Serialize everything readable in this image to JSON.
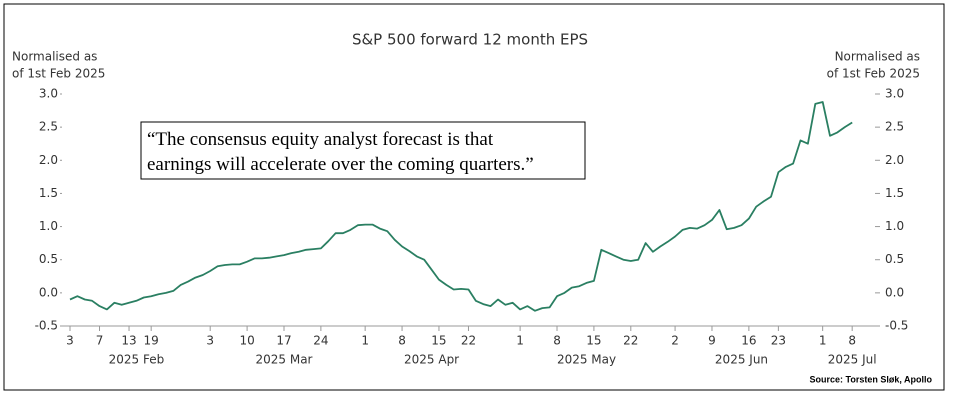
{
  "chart_data": {
    "type": "line",
    "title": "S&P 500 forward 12 month EPS",
    "y_label": [
      "Normalised as",
      "of 1st Feb 2025"
    ],
    "y2_label": [
      "Normalised as",
      "of 1st Feb 2025"
    ],
    "annotation": [
      "“The consensus equity analyst forecast is that",
      "earnings will accelerate over the coming quarters.”"
    ],
    "source": "Source: Torsten Sløk, Apollo",
    "x": [
      "2025-02-03",
      "2025-02-04",
      "2025-02-05",
      "2025-02-06",
      "2025-02-07",
      "2025-02-10",
      "2025-02-11",
      "2025-02-12",
      "2025-02-13",
      "2025-02-14",
      "2025-02-18",
      "2025-02-19",
      "2025-02-20",
      "2025-02-21",
      "2025-02-24",
      "2025-02-25",
      "2025-02-26",
      "2025-02-27",
      "2025-02-28",
      "2025-03-03",
      "2025-03-04",
      "2025-03-05",
      "2025-03-06",
      "2025-03-07",
      "2025-03-10",
      "2025-03-11",
      "2025-03-12",
      "2025-03-13",
      "2025-03-14",
      "2025-03-17",
      "2025-03-18",
      "2025-03-19",
      "2025-03-20",
      "2025-03-21",
      "2025-03-24",
      "2025-03-25",
      "2025-03-26",
      "2025-03-27",
      "2025-03-28",
      "2025-03-31",
      "2025-04-01",
      "2025-04-02",
      "2025-04-03",
      "2025-04-04",
      "2025-04-07",
      "2025-04-08",
      "2025-04-09",
      "2025-04-10",
      "2025-04-11",
      "2025-04-14",
      "2025-04-15",
      "2025-04-16",
      "2025-04-17",
      "2025-04-21",
      "2025-04-22",
      "2025-04-23",
      "2025-04-24",
      "2025-04-25",
      "2025-04-28",
      "2025-04-29",
      "2025-04-30",
      "2025-05-01",
      "2025-05-02",
      "2025-05-05",
      "2025-05-06",
      "2025-05-07",
      "2025-05-08",
      "2025-05-09",
      "2025-05-12",
      "2025-05-13",
      "2025-05-14",
      "2025-05-15",
      "2025-05-16",
      "2025-05-19",
      "2025-05-20",
      "2025-05-21",
      "2025-05-22",
      "2025-05-23",
      "2025-05-27",
      "2025-05-28",
      "2025-05-29",
      "2025-05-30",
      "2025-06-02",
      "2025-06-03",
      "2025-06-04",
      "2025-06-05",
      "2025-06-06",
      "2025-06-09",
      "2025-06-10",
      "2025-06-11",
      "2025-06-12",
      "2025-06-13",
      "2025-06-16",
      "2025-06-17",
      "2025-06-18",
      "2025-06-20",
      "2025-06-23",
      "2025-06-24",
      "2025-06-25",
      "2025-06-26",
      "2025-06-27",
      "2025-06-30",
      "2025-07-01",
      "2025-07-02",
      "2025-07-03",
      "2025-07-07",
      "2025-07-08"
    ],
    "series": [
      {
        "name": "S&P 500 forward 12 month EPS",
        "color": "#2a7f62",
        "values": [
          -0.1,
          -0.05,
          -0.1,
          -0.12,
          -0.2,
          -0.25,
          -0.15,
          -0.18,
          -0.15,
          -0.12,
          -0.07,
          -0.05,
          -0.02,
          0.0,
          0.03,
          0.12,
          0.17,
          0.23,
          0.27,
          0.33,
          0.4,
          0.42,
          0.43,
          0.43,
          0.47,
          0.52,
          0.52,
          0.53,
          0.55,
          0.57,
          0.6,
          0.62,
          0.65,
          0.66,
          0.67,
          0.78,
          0.9,
          0.9,
          0.95,
          1.02,
          1.03,
          1.03,
          0.97,
          0.93,
          0.8,
          0.7,
          0.63,
          0.55,
          0.5,
          0.35,
          0.2,
          0.12,
          0.05,
          0.06,
          0.05,
          -0.12,
          -0.17,
          -0.2,
          -0.1,
          -0.18,
          -0.15,
          -0.25,
          -0.2,
          -0.27,
          -0.23,
          -0.22,
          -0.05,
          0.0,
          0.08,
          0.1,
          0.15,
          0.18,
          0.65,
          0.6,
          0.55,
          0.5,
          0.48,
          0.5,
          0.75,
          0.62,
          0.7,
          0.77,
          0.85,
          0.95,
          0.98,
          0.97,
          1.02,
          1.1,
          1.25,
          0.96,
          0.98,
          1.02,
          1.12,
          1.3,
          1.38,
          1.45,
          1.82,
          1.9,
          1.95,
          2.3,
          2.25,
          2.85,
          2.88,
          2.37,
          2.42,
          2.5,
          2.57
        ]
      }
    ],
    "xticks": [
      {
        "value": "2025-02-03",
        "label": "3"
      },
      {
        "value": "2025-02-07",
        "label": "7"
      },
      {
        "value": "2025-02-13",
        "label": "13"
      },
      {
        "value": "2025-02-19",
        "label": "19"
      },
      {
        "value": "2025-03-03",
        "label": "3"
      },
      {
        "value": "2025-03-10",
        "label": "10"
      },
      {
        "value": "2025-03-17",
        "label": "17"
      },
      {
        "value": "2025-03-24",
        "label": "24"
      },
      {
        "value": "2025-04-01",
        "label": "1"
      },
      {
        "value": "2025-04-08",
        "label": "8"
      },
      {
        "value": "2025-04-15",
        "label": "15"
      },
      {
        "value": "2025-04-22",
        "label": "22"
      },
      {
        "value": "2025-05-01",
        "label": "1"
      },
      {
        "value": "2025-05-08",
        "label": "8"
      },
      {
        "value": "2025-05-15",
        "label": "15"
      },
      {
        "value": "2025-05-22",
        "label": "22"
      },
      {
        "value": "2025-06-02",
        "label": "2"
      },
      {
        "value": "2025-06-09",
        "label": "9"
      },
      {
        "value": "2025-06-16",
        "label": "16"
      },
      {
        "value": "2025-06-23",
        "label": "23"
      },
      {
        "value": "2025-07-01",
        "label": "1"
      },
      {
        "value": "2025-07-08",
        "label": "8"
      }
    ],
    "month_labels": [
      {
        "value": "2025-02-14",
        "label": "2025 Feb"
      },
      {
        "value": "2025-03-17",
        "label": "2025 Mar"
      },
      {
        "value": "2025-04-14",
        "label": "2025 Apr"
      },
      {
        "value": "2025-05-14",
        "label": "2025 May"
      },
      {
        "value": "2025-06-13",
        "label": "2025 Jun"
      },
      {
        "value": "2025-07-08",
        "label": "2025 Jul"
      }
    ],
    "ylim": [
      -0.5,
      3.0
    ],
    "yticks": [
      -0.5,
      {
        "value": 0,
        "label": "0.0"
      },
      0.5,
      {
        "value": 1,
        "label": "1.0"
      },
      1.5,
      {
        "value": 2,
        "label": "2.0"
      },
      2.5,
      {
        "value": 3,
        "label": "3.0"
      }
    ],
    "y2lim": [
      -0.5,
      3.0
    ],
    "y2ticks": [
      -0.5,
      {
        "value": 0,
        "label": "0.0"
      },
      0.5,
      {
        "value": 1,
        "label": "1.0"
      },
      1.5,
      {
        "value": 2,
        "label": "2.0"
      },
      2.5,
      {
        "value": 3,
        "label": "3.0"
      }
    ],
    "grid": false
  }
}
